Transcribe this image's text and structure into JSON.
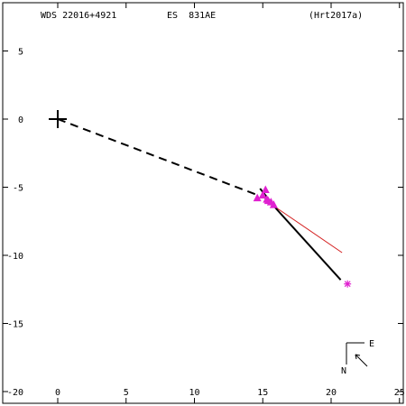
{
  "header": {
    "left": "WDS 22016+4921",
    "middle": "ES  831AE",
    "right": "(Hrt2017a)"
  },
  "chart_data": {
    "type": "scatter",
    "title": "WDS 22016+4921        ES  831AE",
    "reference": "(Hrt2017a)",
    "xlim": [
      -4,
      25
    ],
    "ylim": [
      -20,
      8.5
    ],
    "xticks": [
      0,
      5,
      10,
      15,
      20,
      25
    ],
    "yticks": [
      5,
      0,
      -5,
      -10,
      -15,
      -20
    ],
    "xtick_labels": [
      "0",
      "5",
      "10",
      "15",
      "20",
      "25"
    ],
    "ytick_labels": [
      "5",
      "0",
      "-5",
      "-10",
      "-15",
      "-20"
    ],
    "grid": false,
    "primary": {
      "x": 0,
      "y": 0
    },
    "orbit_dashed": [
      [
        0,
        0
      ],
      [
        15.2,
        -5.8
      ]
    ],
    "orbit_solid": [
      [
        14.8,
        -5.1
      ],
      [
        16.0,
        -6.6
      ],
      [
        20.7,
        -11.8
      ]
    ],
    "linear_fit": [
      [
        15.4,
        -6.1
      ],
      [
        20.8,
        -9.8
      ]
    ],
    "observations": [
      [
        14.6,
        -5.8
      ],
      [
        15.0,
        -5.6
      ],
      [
        15.2,
        -5.2
      ],
      [
        15.3,
        -5.9
      ],
      [
        15.6,
        -6.1
      ],
      [
        15.8,
        -6.3
      ],
      [
        15.4,
        -6.0
      ]
    ],
    "last_observation": [
      21.2,
      -12.1
    ],
    "orientation": {
      "east": "E",
      "north": "N"
    },
    "colors": {
      "orbit": "#000000",
      "observations": "#e020d0",
      "fit": "#d42020"
    }
  }
}
